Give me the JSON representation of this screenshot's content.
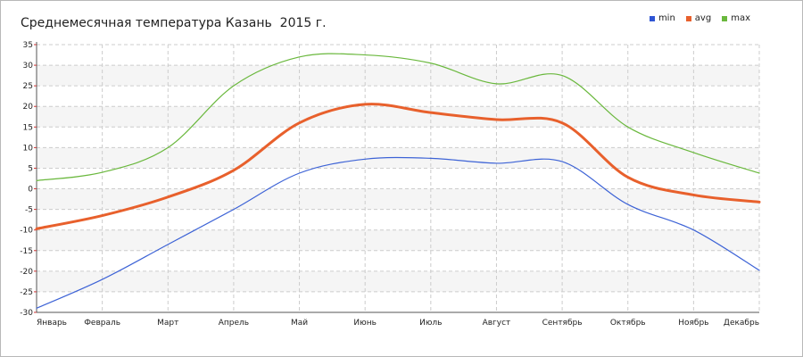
{
  "chart_data": {
    "type": "line",
    "title": "Среднемесячная температура Казань  2015 г.",
    "categories": [
      "Январь",
      "Февраль",
      "Март",
      "Апрель",
      "Май",
      "Июнь",
      "Июль",
      "Август",
      "Сентябрь",
      "Октябрь",
      "Ноябрь",
      "Декабрь"
    ],
    "series": [
      {
        "name": "min",
        "color": "#3d63d6",
        "values": [
          -29,
          -22,
          -13.5,
          -5,
          3.8,
          7.2,
          7.4,
          6.2,
          6.6,
          -3.8,
          -10,
          -19.8
        ]
      },
      {
        "name": "avg",
        "color": "#e8602c",
        "values": [
          -9.7,
          -6.5,
          -2,
          4.5,
          16,
          20.5,
          18.5,
          16.8,
          16,
          2.8,
          -1.5,
          -3.2
        ]
      },
      {
        "name": "max",
        "color": "#6ab83d",
        "values": [
          2,
          4,
          10,
          25,
          32,
          32.5,
          30.5,
          25.5,
          27.5,
          15,
          8.8,
          3.8
        ]
      }
    ],
    "yticks": [
      "35",
      "30",
      "25",
      "20",
      "15",
      "10",
      "5",
      "0",
      "-5",
      "-10",
      "-15",
      "-20",
      "-25",
      "-30"
    ],
    "ylim": [
      -30,
      35
    ],
    "xlabel": "",
    "ylabel": "",
    "grid": true,
    "legend_position": "top-right"
  }
}
